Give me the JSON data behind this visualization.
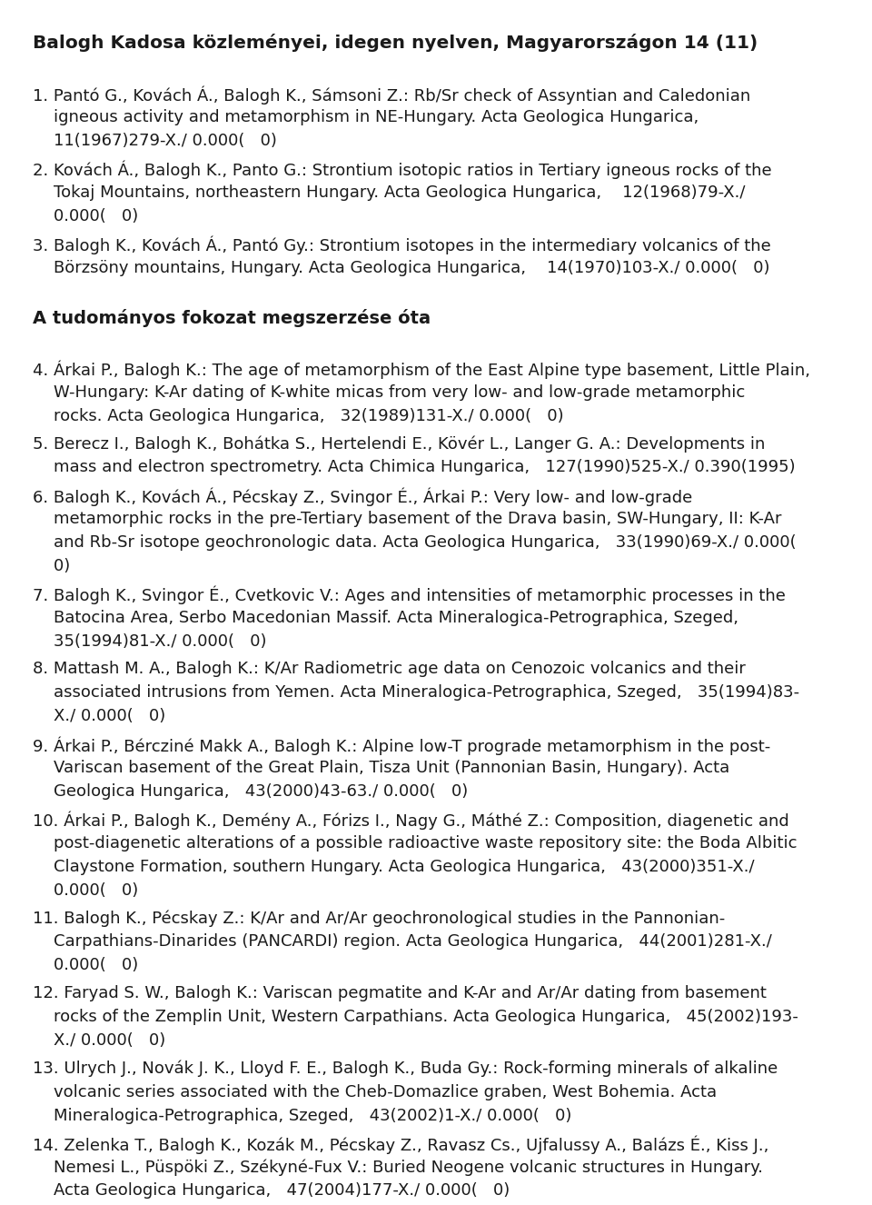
{
  "title": "Balogh Kadosa közleményei, idegen nyelven, Magyarországon 14 (11)",
  "entries_before": [
    {
      "num": "1.",
      "lines": [
        "1. Pantó G., Kovách Á., Balogh K., Sámsoni Z.: Rb/Sr check of Assyntian and Caledonian",
        "    igneous activity and metamorphism in NE-Hungary. Acta Geologica Hungarica,",
        "    11(1967)279-X./ 0.000(   0)"
      ]
    },
    {
      "num": "2.",
      "lines": [
        "2. Kovách Á., Balogh K., Panto G.: Strontium isotopic ratios in Tertiary igneous rocks of the",
        "    Tokaj Mountains, northeastern Hungary. Acta Geologica Hungarica,    12(1968)79-X./",
        "    0.000(   0)"
      ]
    },
    {
      "num": "3.",
      "lines": [
        "3. Balogh K., Kovách Á., Pantó Gy.: Strontium isotopes in the intermediary volcanics of the",
        "    Börzsöny mountains, Hungary. Acta Geologica Hungarica,    14(1970)103-X./ 0.000(   0)"
      ]
    }
  ],
  "section2_header": "A tudományos fokozat megszerzése óta",
  "entries_after": [
    {
      "num": "4.",
      "lines": [
        "4. Árkai P., Balogh K.: The age of metamorphism of the East Alpine type basement, Little Plain,",
        "    W-Hungary: K-Ar dating of K-white micas from very low- and low-grade metamorphic",
        "    rocks. Acta Geologica Hungarica,   32(1989)131-X./ 0.000(   0)"
      ]
    },
    {
      "num": "5.",
      "lines": [
        "5. Berecz I., Balogh K., Bohátka S., Hertelendi E., Kövér L., Langer G. A.: Developments in",
        "    mass and electron spectrometry. Acta Chimica Hungarica,   127(1990)525-X./ 0.390(1995)"
      ]
    },
    {
      "num": "6.",
      "lines": [
        "6. Balogh K., Kovách Á., Pécskay Z., Svingor É., Árkai P.: Very low- and low-grade",
        "    metamorphic rocks in the pre-Tertiary basement of the Drava basin, SW-Hungary, II: K-Ar",
        "    and Rb-Sr isotope geochronologic data. Acta Geologica Hungarica,   33(1990)69-X./ 0.000(",
        "    0)"
      ]
    },
    {
      "num": "7.",
      "lines": [
        "7. Balogh K., Svingor É., Cvetkovic V.: Ages and intensities of metamorphic processes in the",
        "    Batocina Area, Serbo Macedonian Massif. Acta Mineralogica-Petrographica, Szeged,",
        "    35(1994)81-X./ 0.000(   0)"
      ]
    },
    {
      "num": "8.",
      "lines": [
        "8. Mattash M. A., Balogh K.: K/Ar Radiometric age data on Cenozoic volcanics and their",
        "    associated intrusions from Yemen. Acta Mineralogica-Petrographica, Szeged,   35(1994)83-",
        "    X./ 0.000(   0)"
      ]
    },
    {
      "num": "9.",
      "lines": [
        "9. Árkai P., Bércziné Makk A., Balogh K.: Alpine low-T prograde metamorphism in the post-",
        "    Variscan basement of the Great Plain, Tisza Unit (Pannonian Basin, Hungary). Acta",
        "    Geologica Hungarica,   43(2000)43-63./ 0.000(   0)"
      ]
    },
    {
      "num": "10.",
      "lines": [
        "10. Árkai P., Balogh K., Demény A., Fórizs I., Nagy G., Máthé Z.: Composition, diagenetic and",
        "    post-diagenetic alterations of a possible radioactive waste repository site: the Boda Albitic",
        "    Claystone Formation, southern Hungary. Acta Geologica Hungarica,   43(2000)351-X./",
        "    0.000(   0)"
      ]
    },
    {
      "num": "11.",
      "lines": [
        "11. Balogh K., Pécskay Z.: K/Ar and Ar/Ar geochronological studies in the Pannonian-",
        "    Carpathians-Dinarides (PANCARDI) region. Acta Geologica Hungarica,   44(2001)281-X./",
        "    0.000(   0)"
      ]
    },
    {
      "num": "12.",
      "lines": [
        "12. Faryad S. W., Balogh K.: Variscan pegmatite and K-Ar and Ar/Ar dating from basement",
        "    rocks of the Zemplin Unit, Western Carpathians. Acta Geologica Hungarica,   45(2002)193-",
        "    X./ 0.000(   0)"
      ]
    },
    {
      "num": "13.",
      "lines": [
        "13. Ulrych J., Novák J. K., Lloyd F. E., Balogh K., Buda Gy.: Rock-forming minerals of alkaline",
        "    volcanic series associated with the Cheb-Domazlice graben, West Bohemia. Acta",
        "    Mineralogica-Petrographica, Szeged,   43(2002)1-X./ 0.000(   0)"
      ]
    },
    {
      "num": "14.",
      "lines": [
        "14. Zelenka T., Balogh K., Kozák M., Pécskay Z., Ravasz Cs., Ujfalussy A., Balázs É., Kiss J.,",
        "    Nemesi L., Püspöki Z., Székyné-Fux V.: Buried Neogene volcanic structures in Hungary.",
        "    Acta Geologica Hungarica,   47(2004)177-X./ 0.000(   0)"
      ]
    }
  ],
  "bg_color": "#ffffff",
  "text_color": "#1a1a1a",
  "font_family": "DejaVu Sans",
  "title_fontsize": 14.5,
  "body_fontsize": 13.0,
  "section_fontsize": 14.0
}
